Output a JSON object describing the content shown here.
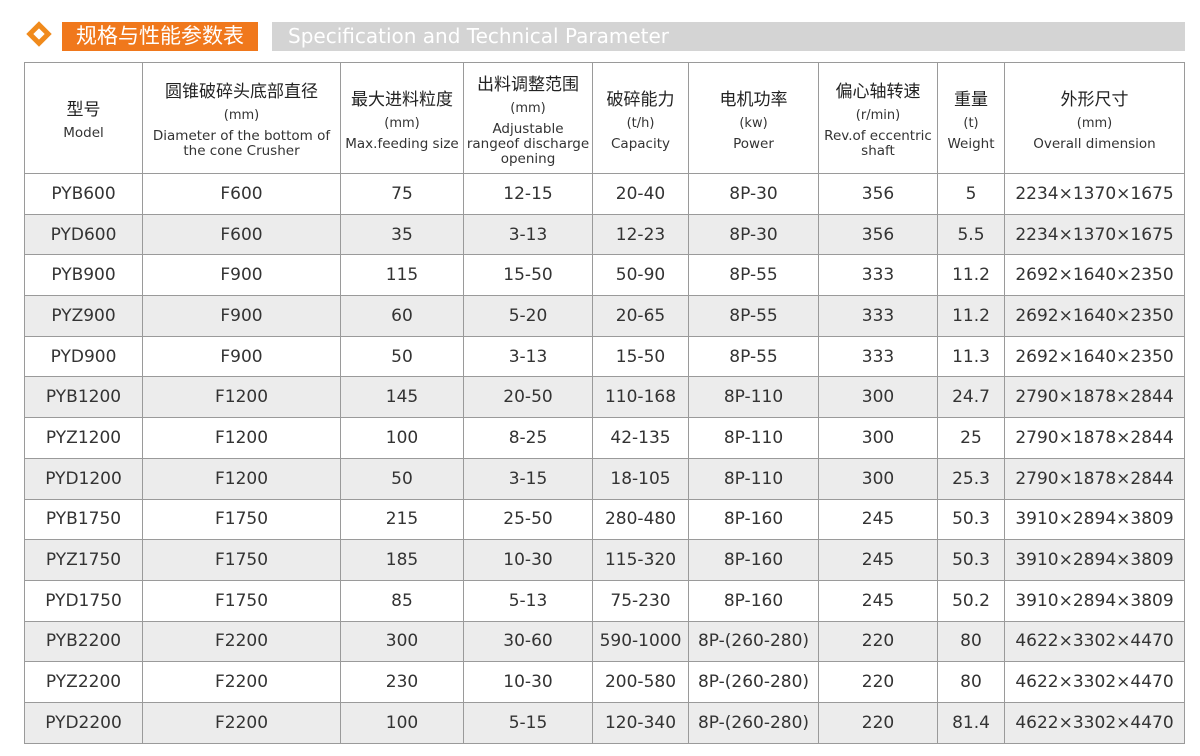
{
  "header": {
    "title_zh": "规格与性能参数表",
    "title_en": "Specification and Technical Parameter"
  },
  "table": {
    "columns": [
      [
        "型号",
        "Model"
      ],
      [
        "圆锥破碎头底部直径",
        "(mm)",
        "Diameter of the bottom of the cone Crusher"
      ],
      [
        "最大进料粒度",
        "(mm)",
        "Max.feeding size"
      ],
      [
        "出料调整范围",
        "(mm)",
        "Adjustable rangeof discharge opening"
      ],
      [
        "破碎能力",
        "(t/h)",
        "Capacity"
      ],
      [
        "电机功率",
        "(kw)",
        "Power"
      ],
      [
        "偏心轴转速",
        "(r/min)",
        "Rev.of eccentric shaft"
      ],
      [
        "重量",
        "(t)",
        "Weight"
      ],
      [
        "外形尺寸",
        "(mm)",
        "Overall dimension"
      ]
    ],
    "rows": [
      [
        "PYB600",
        "F600",
        "75",
        "12-15",
        "20-40",
        "8P-30",
        "356",
        "5",
        "2234×1370×1675"
      ],
      [
        "PYD600",
        "F600",
        "35",
        "3-13",
        "12-23",
        "8P-30",
        "356",
        "5.5",
        "2234×1370×1675"
      ],
      [
        "PYB900",
        "F900",
        "115",
        "15-50",
        "50-90",
        "8P-55",
        "333",
        "11.2",
        "2692×1640×2350"
      ],
      [
        "PYZ900",
        "F900",
        "60",
        "5-20",
        "20-65",
        "8P-55",
        "333",
        "11.2",
        "2692×1640×2350"
      ],
      [
        "PYD900",
        "F900",
        "50",
        "3-13",
        "15-50",
        "8P-55",
        "333",
        "11.3",
        "2692×1640×2350"
      ],
      [
        "PYB1200",
        "F1200",
        "145",
        "20-50",
        "110-168",
        "8P-110",
        "300",
        "24.7",
        "2790×1878×2844"
      ],
      [
        "PYZ1200",
        "F1200",
        "100",
        "8-25",
        "42-135",
        "8P-110",
        "300",
        "25",
        "2790×1878×2844"
      ],
      [
        "PYD1200",
        "F1200",
        "50",
        "3-15",
        "18-105",
        "8P-110",
        "300",
        "25.3",
        "2790×1878×2844"
      ],
      [
        "PYB1750",
        "F1750",
        "215",
        "25-50",
        "280-480",
        "8P-160",
        "245",
        "50.3",
        "3910×2894×3809"
      ],
      [
        "PYZ1750",
        "F1750",
        "185",
        "10-30",
        "115-320",
        "8P-160",
        "245",
        "50.3",
        "3910×2894×3809"
      ],
      [
        "PYD1750",
        "F1750",
        "85",
        "5-13",
        "75-230",
        "8P-160",
        "245",
        "50.2",
        "3910×2894×3809"
      ],
      [
        "PYB2200",
        "F2200",
        "300",
        "30-60",
        "590-1000",
        "8P-(260-280)",
        "220",
        "80",
        "4622×3302×4470"
      ],
      [
        "PYZ2200",
        "F2200",
        "230",
        "10-30",
        "200-580",
        "8P-(260-280)",
        "220",
        "80",
        "4622×3302×4470"
      ],
      [
        "PYD2200",
        "F2200",
        "100",
        "5-15",
        "120-340",
        "8P-(260-280)",
        "220",
        "81.4",
        "4622×3302×4470"
      ]
    ]
  }
}
